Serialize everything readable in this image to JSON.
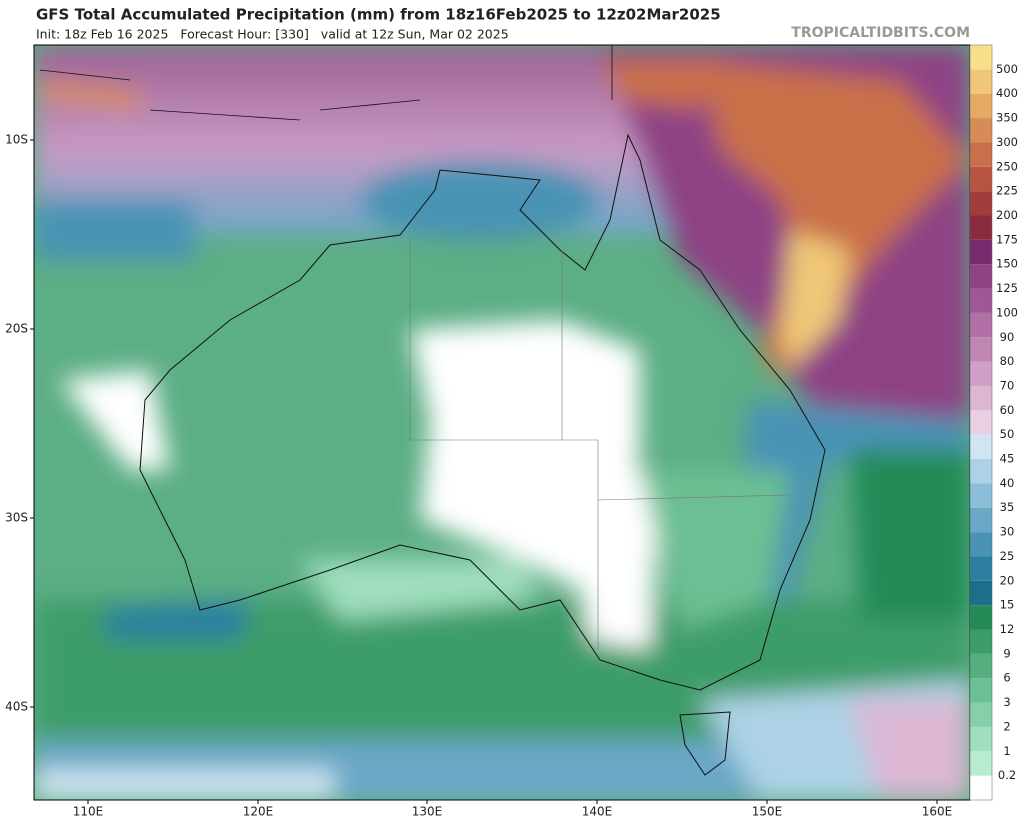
{
  "header": {
    "title": "GFS Total Accumulated Precipitation (mm) from 18z16Feb2025 to 12z02Mar2025",
    "subtitle": "Init: 18z Feb 16 2025   Forecast Hour: [330]   valid at 12z Sun, Mar 02 2025",
    "source": "TROPICALTIDBITS.COM"
  },
  "map": {
    "lat_labels": [
      "10S",
      "20S",
      "30S",
      "40S"
    ],
    "lon_labels": [
      "110E",
      "120E",
      "130E",
      "140E",
      "150E",
      "160E"
    ]
  },
  "colorbar": {
    "labels": [
      "0.2",
      "1",
      "2",
      "3",
      "6",
      "9",
      "12",
      "15",
      "20",
      "25",
      "30",
      "35",
      "40",
      "45",
      "50",
      "60",
      "70",
      "80",
      "90",
      "100",
      "125",
      "150",
      "175",
      "200",
      "225",
      "250",
      "300",
      "350",
      "400",
      "500"
    ],
    "colors": [
      "#ffffff",
      "#b8ecd0",
      "#9fdebe",
      "#86cfa8",
      "#6cbf92",
      "#54ae7d",
      "#3c9d69",
      "#248b57",
      "#1d6e8a",
      "#2c7fa0",
      "#4a93b5",
      "#6aa8c8",
      "#8bbdd8",
      "#add2e6",
      "#cfe5f2",
      "#e8cfe2",
      "#dcb7d4",
      "#cf9fc5",
      "#c087b5",
      "#b070a5",
      "#9f5895",
      "#8e4284",
      "#7a2a6e",
      "#8a2a3c",
      "#a23b3b",
      "#b85442",
      "#c96f4a",
      "#d88c55",
      "#e5a964",
      "#f0c777",
      "#f8e08a"
    ]
  }
}
